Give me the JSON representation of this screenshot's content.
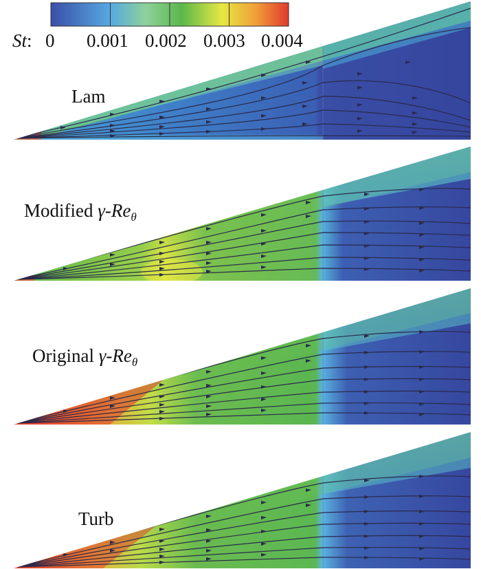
{
  "colorbar": {
    "variable": "St",
    "variable_suffix": ":",
    "tick_labels": [
      "0",
      "0.001",
      "0.002",
      "0.003",
      "0.004"
    ],
    "range": [
      0,
      0.004
    ],
    "colors": [
      "#3b4fa7",
      "#57a9e2",
      "#8ed19a",
      "#5cb74b",
      "#e6e842",
      "#f0a03a",
      "#e03a2c"
    ]
  },
  "panels": [
    {
      "name": "lam",
      "label": "Lam",
      "label_prefix": "",
      "label_gamma": "",
      "label_re": "",
      "label_sub": ""
    },
    {
      "name": "modified",
      "label": "",
      "label_prefix": "Modified ",
      "label_gamma": "γ",
      "label_re": "Re",
      "label_sub": "θ"
    },
    {
      "name": "original",
      "label": "",
      "label_prefix": "Original ",
      "label_gamma": "γ",
      "label_re": "Re",
      "label_sub": "θ"
    },
    {
      "name": "turb",
      "label": "Turb",
      "label_prefix": "",
      "label_gamma": "",
      "label_re": "",
      "label_sub": ""
    }
  ],
  "streamline_color": "#2a2a4a"
}
